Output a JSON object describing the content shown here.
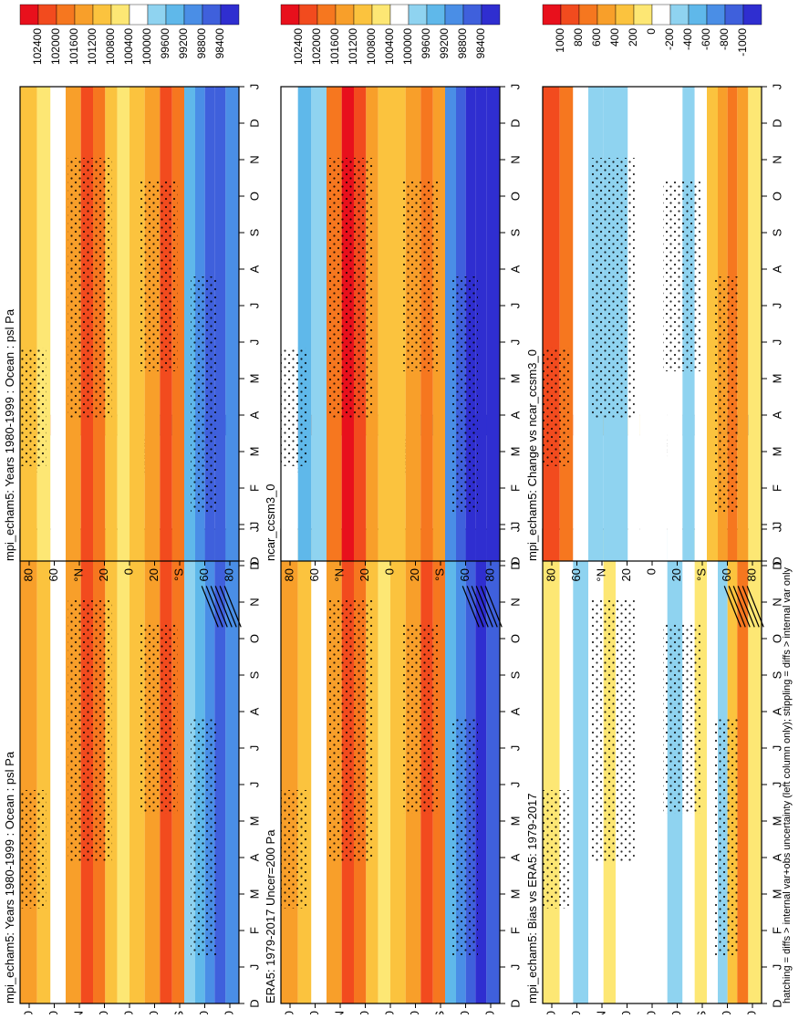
{
  "figure_note": "hatching = diffs > internal var+obs uncertainty (left column only); stippling = diffs > internal var only",
  "chart_data": [
    {
      "type": "heatmap",
      "title": "mpi_echam5: Years 1980-1999 : Ocean : psl Pa",
      "x_ticks": [
        "D",
        "J",
        "F",
        "M",
        "A",
        "M",
        "J",
        "J",
        "A",
        "S",
        "O",
        "N",
        "D",
        "J"
      ],
      "y_ticks": [
        "80",
        "60",
        "°N",
        "20",
        "0",
        "20",
        "°S",
        "60",
        "80"
      ],
      "ylim": [
        -90,
        90
      ],
      "colorbar": {
        "labels": [
          "102400",
          "102000",
          "101600",
          "101200",
          "100800",
          "100400",
          "100000",
          "99600",
          "99200",
          "98800",
          "98400"
        ],
        "colors": [
          "#e8101c",
          "#f24b1e",
          "#f6771f",
          "#f89f2a",
          "#fbc33e",
          "#fde774",
          "#ffffff",
          "#8fd3f0",
          "#5fb8ea",
          "#4a8ee6",
          "#3f60dc",
          "#2f2ed0"
        ]
      },
      "bands": [
        {
          "lat": 82,
          "level": 3
        },
        {
          "lat": 70,
          "level": 4
        },
        {
          "lat": 60,
          "level": 6
        },
        {
          "lat": 45,
          "level": 3
        },
        {
          "lat": 35,
          "level": 1
        },
        {
          "lat": 25,
          "level": 2
        },
        {
          "lat": 15,
          "level": 4
        },
        {
          "lat": 5,
          "level": 5
        },
        {
          "lat": -5,
          "level": 4
        },
        {
          "lat": -20,
          "level": 3
        },
        {
          "lat": -30,
          "level": 1
        },
        {
          "lat": -40,
          "level": 2
        },
        {
          "lat": -50,
          "level": 7
        },
        {
          "lat": -58,
          "level": 8
        },
        {
          "lat": -66,
          "level": 9
        },
        {
          "lat": -74,
          "level": 10
        },
        {
          "lat": -84,
          "level": 9
        }
      ],
      "hatched": true
    },
    {
      "type": "heatmap",
      "title": "mpi_echam5: Years 1980-1999 : Ocean : psl Pa",
      "x_ticks": [
        "D",
        "J",
        "F",
        "M",
        "A",
        "M",
        "J",
        "J",
        "A",
        "S",
        "O",
        "N",
        "D",
        "J"
      ],
      "y_ticks": [
        "80",
        "60",
        "°N",
        "20",
        "0",
        "20",
        "°S",
        "60",
        "80"
      ],
      "ylim": [
        -90,
        90
      ],
      "colorbar": {
        "labels": [
          "102400",
          "102000",
          "101600",
          "101200",
          "100800",
          "100400",
          "100000",
          "99600",
          "99200",
          "98800",
          "98400"
        ],
        "colors": [
          "#e8101c",
          "#f24b1e",
          "#f6771f",
          "#f89f2a",
          "#fbc33e",
          "#fde774",
          "#ffffff",
          "#8fd3f0",
          "#5fb8ea",
          "#4a8ee6",
          "#3f60dc",
          "#2f2ed0"
        ]
      },
      "bands": [
        {
          "lat": 82,
          "level": 4
        },
        {
          "lat": 70,
          "level": 5
        },
        {
          "lat": 60,
          "level": 6
        },
        {
          "lat": 45,
          "level": 3
        },
        {
          "lat": 35,
          "level": 1
        },
        {
          "lat": 25,
          "level": 2
        },
        {
          "lat": 15,
          "level": 4
        },
        {
          "lat": 5,
          "level": 5
        },
        {
          "lat": -5,
          "level": 4
        },
        {
          "lat": -20,
          "level": 3
        },
        {
          "lat": -30,
          "level": 1
        },
        {
          "lat": -40,
          "level": 2
        },
        {
          "lat": -50,
          "level": 8
        },
        {
          "lat": -58,
          "level": 9
        },
        {
          "lat": -66,
          "level": 10
        },
        {
          "lat": -74,
          "level": 10
        },
        {
          "lat": -84,
          "level": 9
        }
      ],
      "hatched": false
    },
    {
      "type": "heatmap",
      "title": "ERA5: 1979-2017 Uncer=200 Pa",
      "x_ticks": [
        "D",
        "J",
        "F",
        "M",
        "A",
        "M",
        "J",
        "J",
        "A",
        "S",
        "O",
        "N",
        "D",
        "J"
      ],
      "y_ticks": [
        "80",
        "60",
        "°N",
        "20",
        "0",
        "20",
        "°S",
        "60",
        "80"
      ],
      "ylim": [
        -90,
        90
      ],
      "colorbar": {
        "labels": [
          "102400",
          "102000",
          "101600",
          "101200",
          "100800",
          "100400",
          "100000",
          "99600",
          "99200",
          "98800",
          "98400"
        ],
        "colors": [
          "#e8101c",
          "#f24b1e",
          "#f6771f",
          "#f89f2a",
          "#fbc33e",
          "#fde774",
          "#ffffff",
          "#8fd3f0",
          "#5fb8ea",
          "#4a8ee6",
          "#3f60dc",
          "#2f2ed0"
        ]
      },
      "bands": [
        {
          "lat": 82,
          "level": 3
        },
        {
          "lat": 70,
          "level": 4
        },
        {
          "lat": 60,
          "level": 6
        },
        {
          "lat": 45,
          "level": 3
        },
        {
          "lat": 35,
          "level": 1
        },
        {
          "lat": 25,
          "level": 2
        },
        {
          "lat": 15,
          "level": 4
        },
        {
          "lat": 5,
          "level": 5
        },
        {
          "lat": -5,
          "level": 4
        },
        {
          "lat": -20,
          "level": 3
        },
        {
          "lat": -30,
          "level": 1
        },
        {
          "lat": -40,
          "level": 2
        },
        {
          "lat": -50,
          "level": 8
        },
        {
          "lat": -58,
          "level": 9
        },
        {
          "lat": -66,
          "level": 10
        },
        {
          "lat": -74,
          "level": 11
        },
        {
          "lat": -84,
          "level": 10
        }
      ],
      "hatched": true
    },
    {
      "type": "heatmap",
      "title": "ncar_ccsm3_0",
      "x_ticks": [
        "D",
        "J",
        "F",
        "M",
        "A",
        "M",
        "J",
        "J",
        "A",
        "S",
        "O",
        "N",
        "D",
        "J"
      ],
      "y_ticks": [
        "80",
        "60",
        "°N",
        "20",
        "0",
        "20",
        "°S",
        "60",
        "80"
      ],
      "ylim": [
        -90,
        90
      ],
      "colorbar": {
        "labels": [
          "102400",
          "102000",
          "101600",
          "101200",
          "100800",
          "100400",
          "100000",
          "99600",
          "99200",
          "98800",
          "98400"
        ],
        "colors": [
          "#e8101c",
          "#f24b1e",
          "#f6771f",
          "#f89f2a",
          "#fbc33e",
          "#fde774",
          "#ffffff",
          "#8fd3f0",
          "#5fb8ea",
          "#4a8ee6",
          "#3f60dc",
          "#2f2ed0"
        ]
      },
      "bands": [
        {
          "lat": 82,
          "level": 6
        },
        {
          "lat": 70,
          "level": 8
        },
        {
          "lat": 60,
          "level": 7
        },
        {
          "lat": 45,
          "level": 2
        },
        {
          "lat": 35,
          "level": 0
        },
        {
          "lat": 25,
          "level": 1
        },
        {
          "lat": 15,
          "level": 3
        },
        {
          "lat": 5,
          "level": 4
        },
        {
          "lat": -5,
          "level": 4
        },
        {
          "lat": -20,
          "level": 3
        },
        {
          "lat": -30,
          "level": 2
        },
        {
          "lat": -40,
          "level": 3
        },
        {
          "lat": -50,
          "level": 9
        },
        {
          "lat": -58,
          "level": 10
        },
        {
          "lat": -66,
          "level": 11
        },
        {
          "lat": -74,
          "level": 11
        },
        {
          "lat": -84,
          "level": 11
        }
      ],
      "hatched": false
    },
    {
      "type": "heatmap",
      "title": "mpi_echam5: Bias vs ERA5: 1979-2017",
      "x_ticks": [
        "D",
        "J",
        "F",
        "M",
        "A",
        "M",
        "J",
        "J",
        "A",
        "S",
        "O",
        "N",
        "D",
        "J"
      ],
      "y_ticks": [
        "80",
        "60",
        "°N",
        "20",
        "0",
        "20",
        "°S",
        "60",
        "80"
      ],
      "ylim": [
        -90,
        90
      ],
      "colorbar": {
        "labels": [
          "1000",
          "800",
          "600",
          "400",
          "200",
          "0",
          "-200",
          "-400",
          "-600",
          "-800",
          "-1000"
        ],
        "colors": [
          "#e8101c",
          "#f24b1e",
          "#f6771f",
          "#f89f2a",
          "#fbc33e",
          "#fde774",
          "#ffffff",
          "#8fd3f0",
          "#5fb8ea",
          "#4a8ee6",
          "#3f60dc",
          "#2f2ed0"
        ]
      },
      "bands": [
        {
          "lat": 82,
          "level": 5
        },
        {
          "lat": 70,
          "level": 6
        },
        {
          "lat": 60,
          "level": 7
        },
        {
          "lat": 45,
          "level": 6
        },
        {
          "lat": 35,
          "level": 5
        },
        {
          "lat": 25,
          "level": 6
        },
        {
          "lat": 15,
          "level": 6
        },
        {
          "lat": 5,
          "level": 6
        },
        {
          "lat": -5,
          "level": 6
        },
        {
          "lat": -20,
          "level": 7
        },
        {
          "lat": -30,
          "level": 6
        },
        {
          "lat": -40,
          "level": 5
        },
        {
          "lat": -50,
          "level": 6
        },
        {
          "lat": -58,
          "level": 7
        },
        {
          "lat": -66,
          "level": 4
        },
        {
          "lat": -74,
          "level": 2
        },
        {
          "lat": -84,
          "level": 5
        }
      ],
      "hatched": true
    },
    {
      "type": "heatmap",
      "title": "mpi_echam5: Change vs ncar_ccsm3_0",
      "x_ticks": [
        "D",
        "J",
        "F",
        "M",
        "A",
        "M",
        "J",
        "J",
        "A",
        "S",
        "O",
        "N",
        "D",
        "J"
      ],
      "y_ticks": [
        "80",
        "60",
        "°N",
        "20",
        "0",
        "20",
        "°S",
        "60",
        "80"
      ],
      "ylim": [
        -90,
        90
      ],
      "colorbar": {
        "labels": [
          "1000",
          "800",
          "600",
          "400",
          "200",
          "0",
          "-200",
          "-400",
          "-600",
          "-800",
          "-1000"
        ],
        "colors": [
          "#e8101c",
          "#f24b1e",
          "#f6771f",
          "#f89f2a",
          "#fbc33e",
          "#fde774",
          "#ffffff",
          "#8fd3f0",
          "#5fb8ea",
          "#4a8ee6",
          "#3f60dc",
          "#2f2ed0"
        ]
      },
      "bands": [
        {
          "lat": 82,
          "level": 1
        },
        {
          "lat": 70,
          "level": 2
        },
        {
          "lat": 60,
          "level": 6
        },
        {
          "lat": 45,
          "level": 7
        },
        {
          "lat": 35,
          "level": 7
        },
        {
          "lat": 25,
          "level": 7
        },
        {
          "lat": 15,
          "level": 6
        },
        {
          "lat": 5,
          "level": 6
        },
        {
          "lat": -5,
          "level": 6
        },
        {
          "lat": -20,
          "level": 6
        },
        {
          "lat": -30,
          "level": 7
        },
        {
          "lat": -40,
          "level": 6
        },
        {
          "lat": -50,
          "level": 4
        },
        {
          "lat": -58,
          "level": 3
        },
        {
          "lat": -66,
          "level": 2
        },
        {
          "lat": -74,
          "level": 3
        },
        {
          "lat": -84,
          "level": 5
        }
      ],
      "hatched": false
    }
  ]
}
